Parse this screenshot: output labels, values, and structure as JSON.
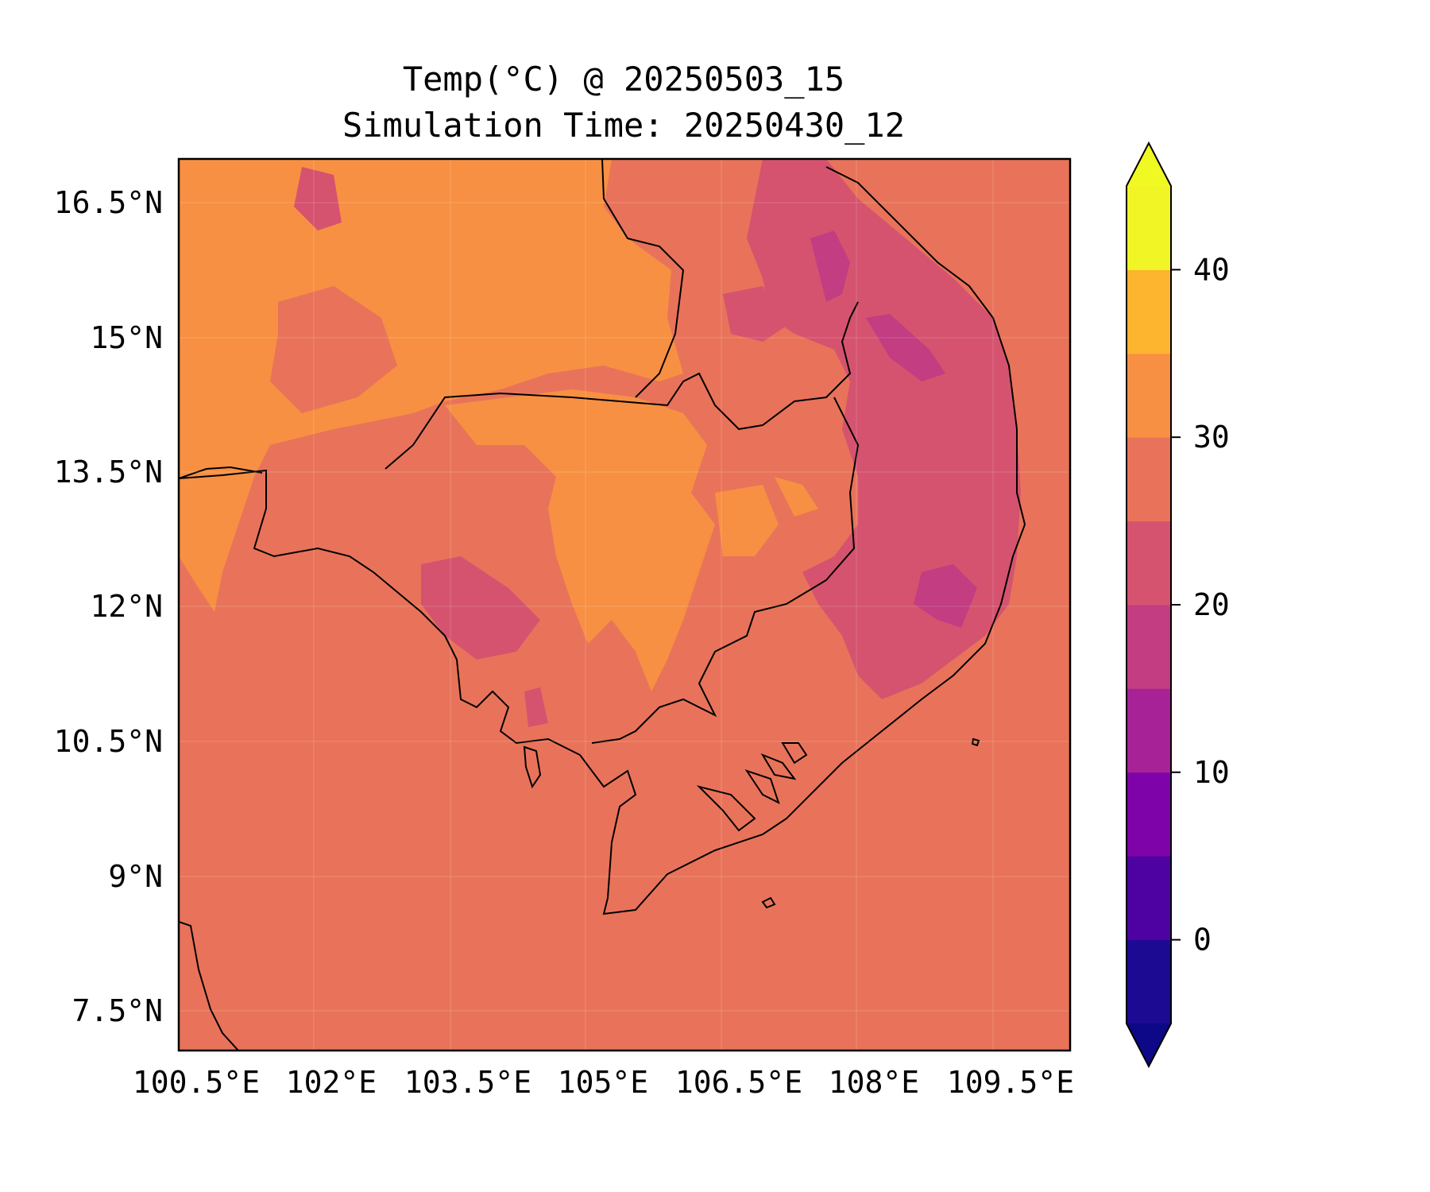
{
  "title_line1": "Temp(°C) @ 20250503_15",
  "title_line2": "Simulation Time: 20250430_12",
  "map": {
    "lon_ticks": [
      "100.5°E",
      "102°E",
      "103.5°E",
      "105°E",
      "106.5°E",
      "108°E",
      "109.5°E"
    ],
    "lat_ticks": [
      "16.5°N",
      "15°N",
      "13.5°N",
      "12°N",
      "10.5°N",
      "9°N",
      "7.5°N"
    ],
    "background_color": "#e8735a"
  },
  "colorbar": {
    "ticks": [
      "40",
      "30",
      "20",
      "10",
      "0"
    ],
    "levels": [
      -5,
      0,
      5,
      10,
      15,
      20,
      25,
      30,
      35,
      40,
      45
    ],
    "colors": [
      "#1c0b92",
      "#4e02a2",
      "#7e03a8",
      "#a72197",
      "#c23d81",
      "#d5536f",
      "#e8735a",
      "#f79043",
      "#fdb42f",
      "#f1f425"
    ],
    "under_color": "#0d0887",
    "over_color": "#f0f921"
  }
}
